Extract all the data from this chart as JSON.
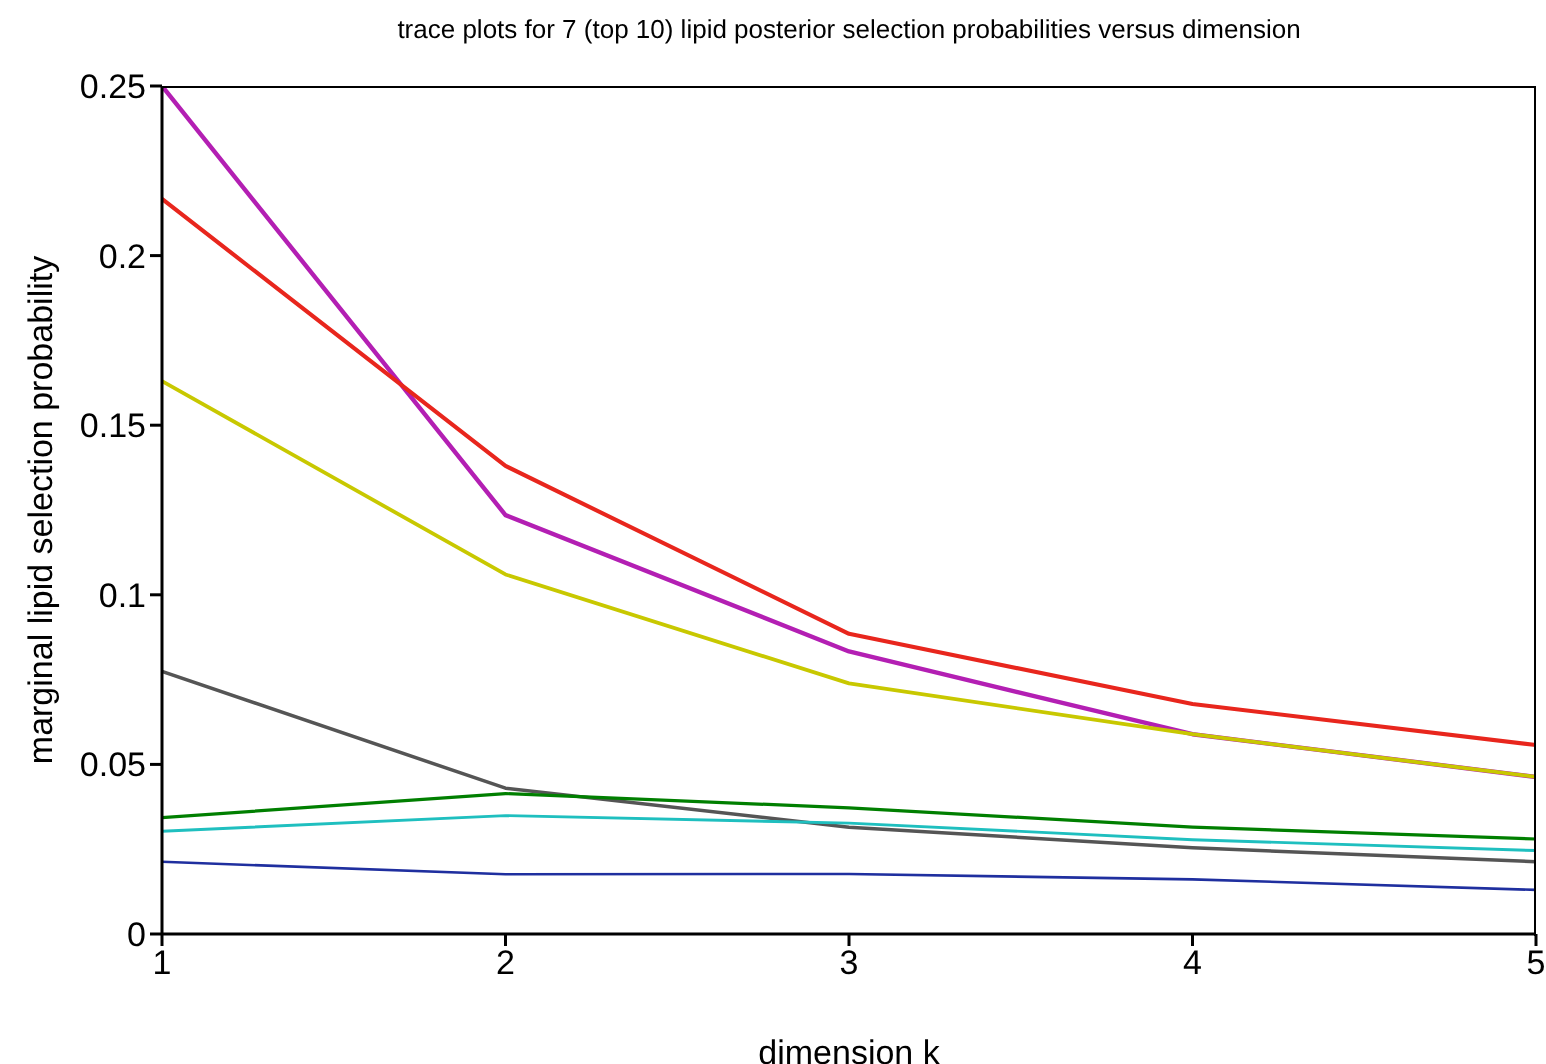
{
  "chart_data": {
    "type": "line",
    "title": "trace plots for 7 (top 10) lipid posterior selection probabilities versus dimension",
    "xlabel": "dimension k",
    "ylabel": "marginal lipid selection probability",
    "x": [
      1,
      2,
      3,
      4,
      5
    ],
    "xlim": [
      1,
      5
    ],
    "xticks": [
      1,
      2,
      3,
      4,
      5
    ],
    "ylim": [
      0,
      0.25
    ],
    "yticks": [
      0,
      0.05,
      0.1,
      0.15,
      0.2,
      0.25
    ],
    "grid": false,
    "legend": false,
    "marker": "none",
    "line_style": "solid",
    "series": [
      {
        "color": "#b31fb3",
        "values": [
          0.25,
          0.1235,
          0.0833,
          0.0589,
          0.0463
        ]
      },
      {
        "color": "#e8261d",
        "values": [
          0.2167,
          0.138,
          0.0885,
          0.0678,
          0.0557
        ]
      },
      {
        "color": "#c8c800",
        "values": [
          0.163,
          0.106,
          0.0739,
          0.0589,
          0.0463
        ]
      },
      {
        "color": "#555555",
        "values": [
          0.0774,
          0.043,
          0.0315,
          0.0254,
          0.0213
        ]
      },
      {
        "color": "#007f00",
        "values": [
          0.0343,
          0.0414,
          0.0372,
          0.0315,
          0.028
        ]
      },
      {
        "color": "#1fbfbf",
        "values": [
          0.0303,
          0.0349,
          0.0327,
          0.0278,
          0.0246
        ]
      },
      {
        "color": "#1f2f9f",
        "values": [
          0.0213,
          0.0176,
          0.0177,
          0.0161,
          0.013
        ]
      }
    ]
  }
}
